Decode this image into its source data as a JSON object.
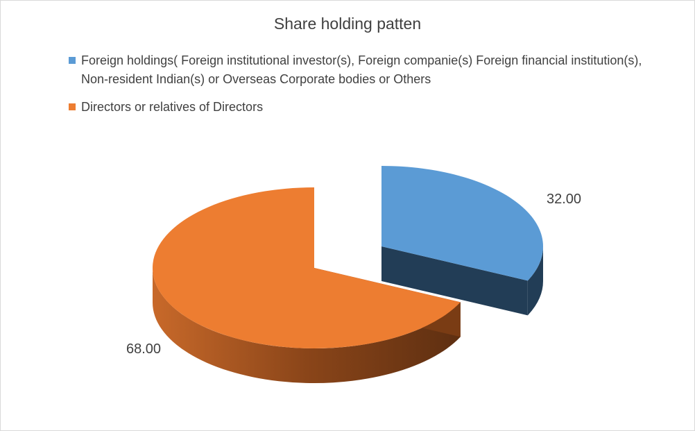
{
  "chart_data": {
    "type": "pie",
    "style": "3d-exploded",
    "title": "Share holding patten",
    "legend_position": "top",
    "slices": [
      {
        "name": "Foreign holdings( Foreign institutional investor(s), Foreign companie(s) Foreign financial institution(s), Non-resident Indian(s) or Overseas Corporate bodies or Others",
        "value": 32.0,
        "label": "32.00",
        "color": "#5b9bd5",
        "side_color": "#223d56",
        "exploded": true
      },
      {
        "name": "Directors or relatives of Directors",
        "value": 68.0,
        "label": "68.00",
        "color": "#ed7d31",
        "side_color": "#a0521d",
        "exploded": false
      }
    ]
  }
}
